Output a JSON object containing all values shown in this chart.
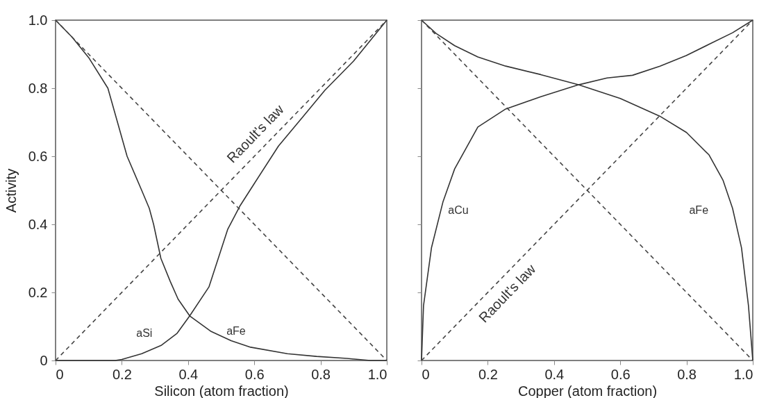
{
  "chart_data": [
    {
      "type": "line",
      "xlabel": "Silicon (atom fraction)",
      "ylabel": "Activity",
      "xlim": [
        0,
        1
      ],
      "ylim": [
        0,
        1
      ],
      "xticks": [
        0,
        0.2,
        0.4,
        0.6,
        0.8,
        {
          "value": 1,
          "label": "1.0"
        }
      ],
      "yticks": [
        0,
        0.2,
        0.4,
        0.6,
        0.8,
        {
          "value": 1,
          "label": "1.0"
        }
      ],
      "grid": false,
      "marker": "none",
      "series": [
        {
          "color": "#333333",
          "line_style": "solid",
          "x": [
            0,
            0.18,
            0.2,
            0.26,
            0.32,
            0.367,
            0.405,
            0.463,
            0.52,
            0.556,
            0.6,
            0.673,
            0.75,
            0.813,
            0.9,
            1
          ],
          "values": [
            0,
            0.0,
            0.003,
            0.02,
            0.045,
            0.08,
            0.131,
            0.216,
            0.386,
            0.453,
            0.52,
            0.63,
            0.72,
            0.794,
            0.88,
            1
          ]
        },
        {
          "color": "#333333",
          "line_style": "solid",
          "x": [
            0,
            0.05,
            0.1,
            0.158,
            0.216,
            0.26,
            0.283,
            0.296,
            0.318,
            0.346,
            0.37,
            0.405,
            0.47,
            0.53,
            0.589,
            0.7,
            0.788,
            0.88,
            0.95,
            1
          ],
          "values": [
            1,
            0.95,
            0.89,
            0.8,
            0.6,
            0.5,
            0.447,
            0.4,
            0.3,
            0.233,
            0.18,
            0.131,
            0.085,
            0.058,
            0.039,
            0.02,
            0.012,
            0.006,
            0.0,
            0.0
          ]
        },
        {
          "color": "#444444",
          "line_style": "dashed",
          "x": [
            0,
            1
          ],
          "values": [
            0,
            1
          ]
        },
        {
          "color": "#444444",
          "line_style": "dashed",
          "x": [
            0,
            1
          ],
          "values": [
            1,
            0
          ]
        }
      ],
      "annotations": [
        "Raoult's law",
        "aSi",
        "aFe"
      ]
    },
    {
      "type": "line",
      "xlabel": "Copper (atom fraction)",
      "xlim": [
        0,
        1
      ],
      "ylim": [
        0,
        1
      ],
      "xticks": [
        0,
        0.2,
        0.4,
        0.6,
        0.8,
        {
          "value": 1,
          "label": "1.0"
        }
      ],
      "yticks": [
        0,
        0.2,
        0.4,
        0.6,
        0.8,
        1
      ],
      "tick_labels": "x",
      "grid": false,
      "marker": "none",
      "series": [
        {
          "color": "#333333",
          "line_style": "solid",
          "x": [
            0,
            0.006,
            0.03,
            0.065,
            0.1,
            0.17,
            0.254,
            0.36,
            0.474,
            0.56,
            0.637,
            0.72,
            0.799,
            0.87,
            0.939,
            1
          ],
          "values": [
            0,
            0.161,
            0.331,
            0.467,
            0.563,
            0.686,
            0.739,
            0.775,
            0.81,
            0.83,
            0.838,
            0.865,
            0.896,
            0.93,
            0.963,
            1
          ]
        },
        {
          "color": "#333333",
          "line_style": "solid",
          "x": [
            0,
            0.044,
            0.1,
            0.17,
            0.254,
            0.36,
            0.474,
            0.6,
            0.719,
            0.8,
            0.868,
            0.91,
            0.939,
            0.966,
            0.987,
            1
          ],
          "values": [
            1,
            0.961,
            0.925,
            0.892,
            0.865,
            0.84,
            0.81,
            0.77,
            0.718,
            0.67,
            0.604,
            0.53,
            0.447,
            0.331,
            0.161,
            0
          ]
        },
        {
          "color": "#444444",
          "line_style": "dashed",
          "x": [
            0,
            1
          ],
          "values": [
            0,
            1
          ]
        },
        {
          "color": "#444444",
          "line_style": "dashed",
          "x": [
            0,
            1
          ],
          "values": [
            1,
            0
          ]
        }
      ],
      "annotations": [
        "Raoult's law",
        "aCu",
        "aFe"
      ]
    }
  ]
}
